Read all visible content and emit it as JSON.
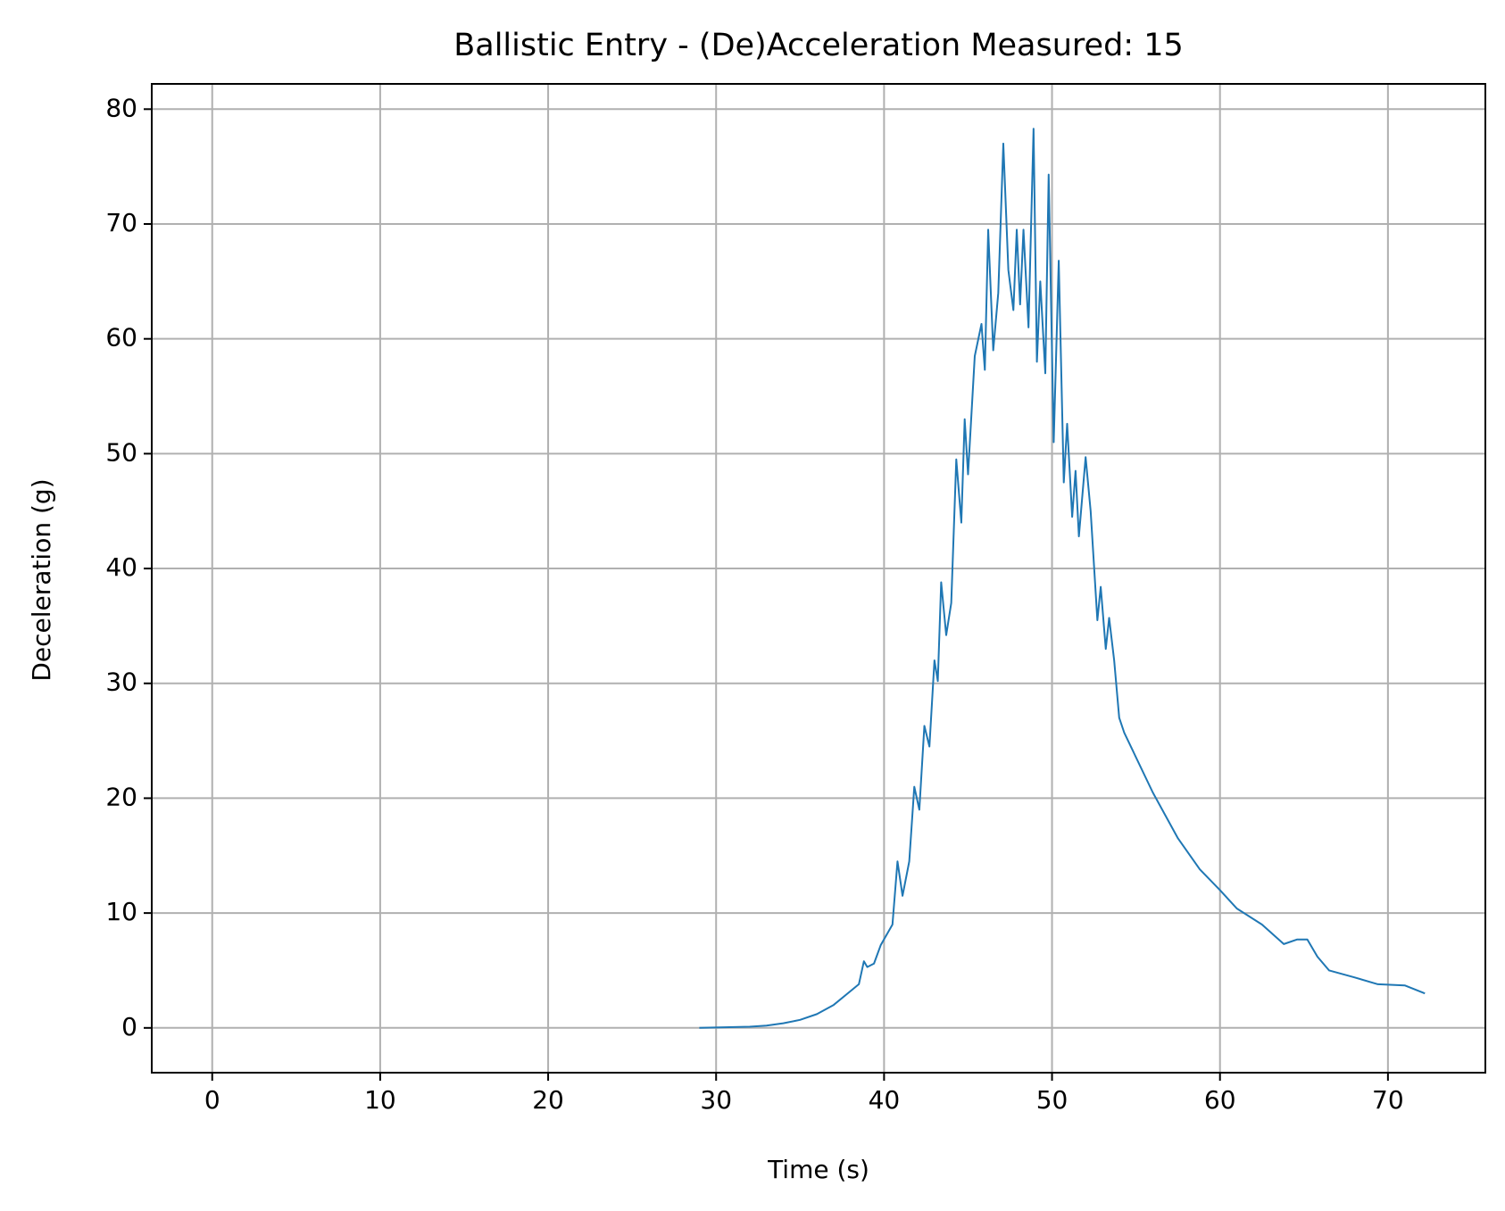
{
  "chart_data": {
    "type": "line",
    "title": "Ballistic Entry - (De)Acceleration Measured: 15",
    "x_label": "Time (s)",
    "y_label": "Deceleration (g)",
    "x": [
      29,
      32,
      33,
      34,
      35,
      36,
      37,
      38,
      38.5,
      38.8,
      39,
      39.4,
      39.8,
      40.5,
      40.8,
      41.1,
      41.5,
      41.8,
      42.1,
      42.4,
      42.7,
      43,
      43.2,
      43.4,
      43.7,
      44,
      44.3,
      44.6,
      44.8,
      45,
      45.4,
      45.8,
      46,
      46.2,
      46.5,
      46.8,
      47.1,
      47.4,
      47.7,
      47.9,
      48.1,
      48.3,
      48.6,
      48.9,
      49.1,
      49.3,
      49.6,
      49.8,
      50.1,
      50.4,
      50.7,
      50.9,
      51.2,
      51.4,
      51.6,
      52,
      52.3,
      52.7,
      52.9,
      53.2,
      53.4,
      53.7,
      54,
      54.3,
      56,
      57.5,
      58.8,
      60,
      61,
      62.5,
      63.8,
      64.6,
      65.2,
      65.8,
      66.5,
      68,
      69.4,
      71,
      72.2
    ],
    "series": [
      {
        "name": "Deceleration",
        "color": "#1f77b4",
        "values": [
          0,
          0.1,
          0.2,
          0.4,
          0.7,
          1.2,
          2,
          3.2,
          3.8,
          5.8,
          5.3,
          5.6,
          7.2,
          9,
          14.5,
          11.5,
          14.5,
          21,
          19,
          26.3,
          24.5,
          32,
          30.2,
          38.8,
          34.2,
          37,
          49.5,
          44,
          53,
          48.2,
          58.5,
          61.3,
          57.3,
          69.5,
          59,
          64,
          77,
          66,
          62.5,
          69.5,
          63,
          69.5,
          61,
          78.3,
          58,
          65,
          57,
          74.3,
          51,
          66.8,
          47.5,
          52.6,
          44.5,
          48.5,
          42.8,
          49.7,
          45,
          35.5,
          38.4,
          33,
          35.7,
          32,
          27,
          25.7,
          20.5,
          16.5,
          13.8,
          12,
          10.4,
          9,
          7.3,
          7.7,
          7.7,
          6.2,
          5,
          4.4,
          3.8,
          3.7,
          3.0
        ]
      }
    ],
    "xlim": [
      -3.6,
      75.8
    ],
    "ylim": [
      -3.9,
      82.2
    ],
    "xticks": [
      0,
      10,
      20,
      30,
      40,
      50,
      60,
      70
    ],
    "yticks": [
      0,
      10,
      20,
      30,
      40,
      50,
      60,
      70,
      80
    ],
    "grid": true
  }
}
